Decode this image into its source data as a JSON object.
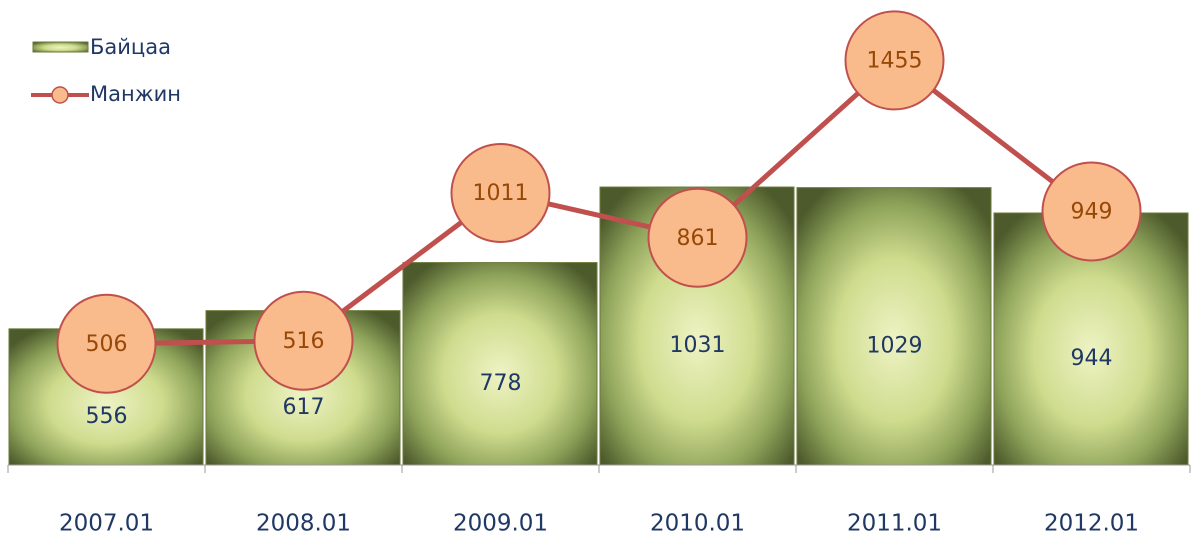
{
  "chart_data": {
    "type": "bar-line",
    "categories": [
      "2007.01",
      "2008.01",
      "2009.01",
      "2010.01",
      "2011.01",
      "2012.01"
    ],
    "series": [
      {
        "name": "Байцаа",
        "type": "bar",
        "color": "#c9d98a",
        "values": [
          556,
          617,
          778,
          1031,
          1029,
          944
        ]
      },
      {
        "name": "Манжин",
        "type": "line",
        "color": "#c0504d",
        "values": [
          506,
          516,
          1011,
          861,
          1455,
          949
        ]
      }
    ],
    "ylim": [
      100,
      1500
    ],
    "legend": "top-left"
  }
}
